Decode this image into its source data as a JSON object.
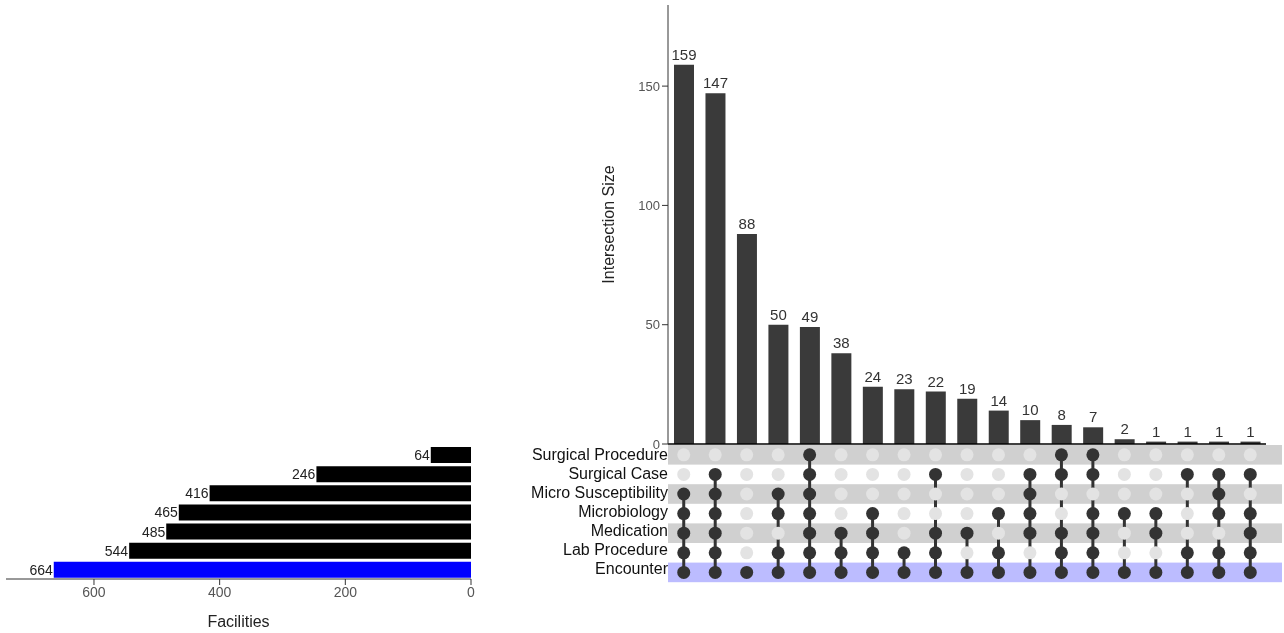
{
  "chart_data": [
    {
      "type": "bar",
      "ylabel": "Intersection Size",
      "categories": [
        null,
        null,
        null,
        null,
        null,
        null,
        null,
        null,
        null,
        null,
        null,
        null,
        null,
        null,
        null,
        null,
        null,
        null,
        null
      ],
      "values": [
        159,
        147,
        88,
        50,
        49,
        38,
        24,
        23,
        22,
        19,
        14,
        10,
        8,
        7,
        2,
        1,
        1,
        1,
        1
      ],
      "color": "#3a3a3a",
      "ylim": [
        0,
        184
      ],
      "yticks": [
        0,
        50,
        100,
        150
      ],
      "data_labels": true,
      "tick_labels": "y",
      "grid": false,
      "legend": false
    },
    {
      "type": "bar",
      "orientation": "horizontal",
      "xlabel": "Facilities",
      "categories": [
        "Surgical Procedure",
        "Surgical Case",
        "Micro Susceptibility",
        "Microbiology",
        "Medication",
        "Lab Procedure",
        "Encounter"
      ],
      "values": [
        64,
        246,
        416,
        465,
        485,
        544,
        664
      ],
      "colors": [
        "#000000",
        "#000000",
        "#000000",
        "#000000",
        "#000000",
        "#000000",
        "#0000ff"
      ],
      "xlim": [
        740,
        0
      ],
      "xticks": [
        600,
        400,
        200,
        0
      ],
      "data_labels": true,
      "grid": false,
      "legend": false
    }
  ]
}
